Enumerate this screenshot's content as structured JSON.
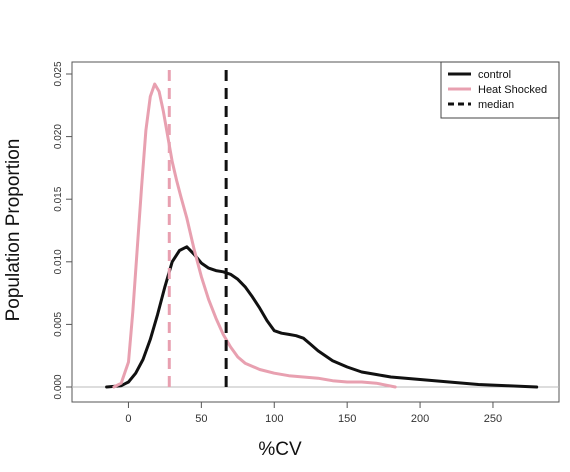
{
  "chart_data": {
    "type": "line",
    "xlabel": "%CV",
    "ylabel": "Population Proportion",
    "xlim": [
      -25,
      285
    ],
    "ylim": [
      0,
      0.025
    ],
    "x_ticks": [
      0,
      50,
      100,
      150,
      200,
      250
    ],
    "y_ticks": [
      0.0,
      0.005,
      0.01,
      0.015,
      0.02,
      0.025
    ],
    "y_tick_labels": [
      "0.000",
      "0.005",
      "0.010",
      "0.015",
      "0.020",
      "0.025"
    ],
    "legend_position": "top-right",
    "baseline_color": "#bbbbbb",
    "series": [
      {
        "name": "control",
        "color": "#111111",
        "x": [
          -15,
          -5,
          0,
          5,
          10,
          15,
          20,
          25,
          30,
          35,
          40,
          45,
          50,
          55,
          60,
          65,
          70,
          75,
          80,
          85,
          90,
          95,
          100,
          105,
          110,
          115,
          120,
          125,
          130,
          140,
          150,
          160,
          170,
          180,
          190,
          200,
          220,
          240,
          260,
          280
        ],
        "y": [
          0.0,
          0.0001,
          0.0004,
          0.0011,
          0.0022,
          0.0038,
          0.0058,
          0.008,
          0.01,
          0.0109,
          0.0112,
          0.0106,
          0.0099,
          0.0095,
          0.0093,
          0.0092,
          0.009,
          0.0086,
          0.008,
          0.0072,
          0.0063,
          0.0053,
          0.0045,
          0.0043,
          0.0042,
          0.0041,
          0.0039,
          0.0034,
          0.0029,
          0.0021,
          0.0016,
          0.0012,
          0.001,
          0.0008,
          0.0007,
          0.0006,
          0.0004,
          0.0002,
          0.0001,
          0.0
        ]
      },
      {
        "name": "Heat Shocked",
        "color": "#e8a0b0",
        "x": [
          -10,
          -5,
          0,
          3,
          6,
          9,
          12,
          15,
          18,
          21,
          24,
          27,
          30,
          33,
          36,
          40,
          45,
          50,
          55,
          60,
          65,
          70,
          75,
          80,
          90,
          100,
          110,
          120,
          130,
          140,
          150,
          160,
          170,
          183
        ],
        "y": [
          0.0,
          0.0003,
          0.002,
          0.006,
          0.011,
          0.016,
          0.0205,
          0.0232,
          0.0242,
          0.0236,
          0.022,
          0.02,
          0.018,
          0.0165,
          0.0152,
          0.0135,
          0.011,
          0.0088,
          0.007,
          0.0055,
          0.0042,
          0.0032,
          0.0024,
          0.0019,
          0.0014,
          0.0011,
          0.0009,
          0.0008,
          0.0007,
          0.0005,
          0.0004,
          0.0004,
          0.0003,
          0.0
        ]
      }
    ],
    "medians": [
      {
        "series": "Heat Shocked",
        "x": 28,
        "color": "#e8a0b0"
      },
      {
        "series": "control",
        "x": 67,
        "color": "#111111"
      }
    ],
    "legend": [
      {
        "label": "control",
        "color": "#111111",
        "style": "solid"
      },
      {
        "label": "Heat Shocked",
        "color": "#e8a0b0",
        "style": "solid"
      },
      {
        "label": "median",
        "color": "#111111",
        "style": "dashed"
      }
    ]
  }
}
